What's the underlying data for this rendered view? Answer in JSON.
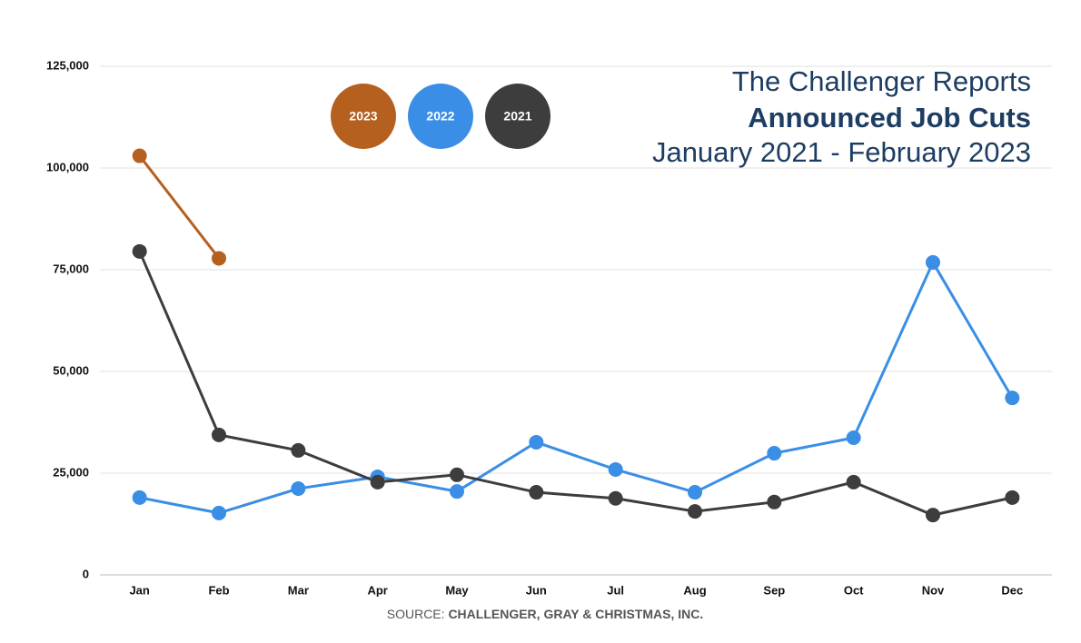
{
  "chart_data": {
    "type": "line",
    "title": "The Challenger Reports",
    "subtitle": "Announced Job Cuts",
    "period": "January 2021 - February 2023",
    "source_label": "SOURCE:",
    "source_name": "CHALLENGER, GRAY & CHRISTMAS, INC.",
    "categories": [
      "Jan",
      "Feb",
      "Mar",
      "Apr",
      "May",
      "Jun",
      "Jul",
      "Aug",
      "Sep",
      "Oct",
      "Nov",
      "Dec"
    ],
    "series": [
      {
        "name": "2023",
        "color": "#b5601f",
        "values": [
          103000,
          77800,
          null,
          null,
          null,
          null,
          null,
          null,
          null,
          null,
          null,
          null
        ]
      },
      {
        "name": "2022",
        "color": "#3a8ee6",
        "values": [
          19000,
          15200,
          21200,
          24100,
          20500,
          32600,
          25900,
          20300,
          29900,
          33700,
          76800,
          43500
        ]
      },
      {
        "name": "2021",
        "color": "#3d3d3d",
        "values": [
          79500,
          34400,
          30600,
          22800,
          24600,
          20300,
          18800,
          15600,
          17900,
          22800,
          14700,
          19000
        ]
      }
    ],
    "ylim": [
      0,
      125000
    ],
    "yticks": [
      0,
      {
        "value": 25000,
        "label": "25,000"
      },
      {
        "value": 50000,
        "label": "50,000"
      },
      {
        "value": 75000,
        "label": "75,000"
      },
      {
        "value": 100000,
        "label": "100,000"
      },
      {
        "value": 125000,
        "label": "125,000"
      }
    ],
    "grid": true
  }
}
